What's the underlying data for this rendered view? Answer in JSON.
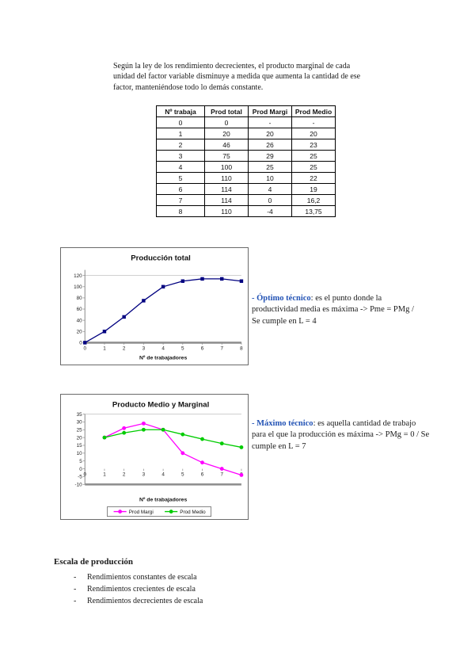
{
  "colors": {
    "accent_blue": "#2353b5",
    "navy": "#000080",
    "magenta": "#ff00ff",
    "green": "#00cc00",
    "axis_gray": "#909090"
  },
  "intro_paragraph": "Según la ley de los rendimiento decrecientes, el producto marginal de cada unidad del factor variable disminuye a medida que aumenta la cantidad de ese factor, manteniéndose todo lo demás constante.",
  "table": {
    "headers": [
      "Nº trabaja",
      "Prod total",
      "Prod Margi",
      "Prod Medio"
    ],
    "rows": [
      [
        "0",
        "0",
        "-",
        "-"
      ],
      [
        "1",
        "20",
        "20",
        "20"
      ],
      [
        "2",
        "46",
        "26",
        "23"
      ],
      [
        "3",
        "75",
        "29",
        "25"
      ],
      [
        "4",
        "100",
        "25",
        "25"
      ],
      [
        "5",
        "110",
        "10",
        "22"
      ],
      [
        "6",
        "114",
        "4",
        "19"
      ],
      [
        "7",
        "114",
        "0",
        "16,2"
      ],
      [
        "8",
        "110",
        "-4",
        "13,75"
      ]
    ]
  },
  "chart_data": [
    {
      "type": "line",
      "title": "Producción total",
      "xlabel": "Nº de trabajadores",
      "x": [
        0,
        1,
        2,
        3,
        4,
        5,
        6,
        7,
        8
      ],
      "series": [
        {
          "name": "Prod total",
          "color": "#000080",
          "marker": "square",
          "values": [
            0,
            20,
            46,
            75,
            100,
            110,
            114,
            114,
            110
          ]
        }
      ],
      "xlim": [
        0,
        8
      ],
      "ylim": [
        0,
        130
      ],
      "yticks": [
        0,
        20,
        40,
        60,
        80,
        100,
        120
      ],
      "xticks": [
        0,
        1,
        2,
        3,
        4,
        5,
        6,
        7,
        8
      ],
      "gridlines": [
        120
      ],
      "legend": false
    },
    {
      "type": "line",
      "title": "Producto Medio y Marginal",
      "xlabel": "Nº de trabajadores",
      "x": [
        1,
        2,
        3,
        4,
        5,
        6,
        7,
        8
      ],
      "series": [
        {
          "name": "Prod Margi",
          "color": "#ff00ff",
          "marker": "circle",
          "values": [
            20,
            26,
            29,
            25,
            10,
            4,
            0,
            -4
          ]
        },
        {
          "name": "Prod Medio",
          "color": "#00cc00",
          "marker": "circle",
          "values": [
            20,
            23,
            25,
            25,
            22,
            19,
            16.2,
            13.75
          ]
        }
      ],
      "xlim": [
        0,
        8
      ],
      "ylim": [
        -10,
        35
      ],
      "yticks": [
        35,
        30,
        25,
        20,
        15,
        10,
        5,
        0,
        -5,
        -10
      ],
      "xticks": [
        0,
        1,
        2,
        3,
        4,
        5,
        6,
        7,
        8
      ],
      "gridlines": [
        35
      ],
      "legend": true,
      "legend_position": "bottom"
    }
  ],
  "annotations": {
    "optimo": {
      "term": "- Óptimo técnico",
      "text": ": es el punto donde la productividad media es máxima -> Pme = PMg / Se cumple en L = 4"
    },
    "maximo": {
      "term": "- Máximo técnico",
      "text": ": es aquella cantidad de trabajo para el que la producción es máxima -> PMg = 0 / Se cumple en L = 7"
    }
  },
  "scale_section": {
    "heading": "Escala de producción",
    "bullet": "-",
    "items": [
      "Rendimientos constantes de escala",
      "Rendimientos crecientes de escala",
      "Rendimientos decrecientes de escala"
    ]
  }
}
